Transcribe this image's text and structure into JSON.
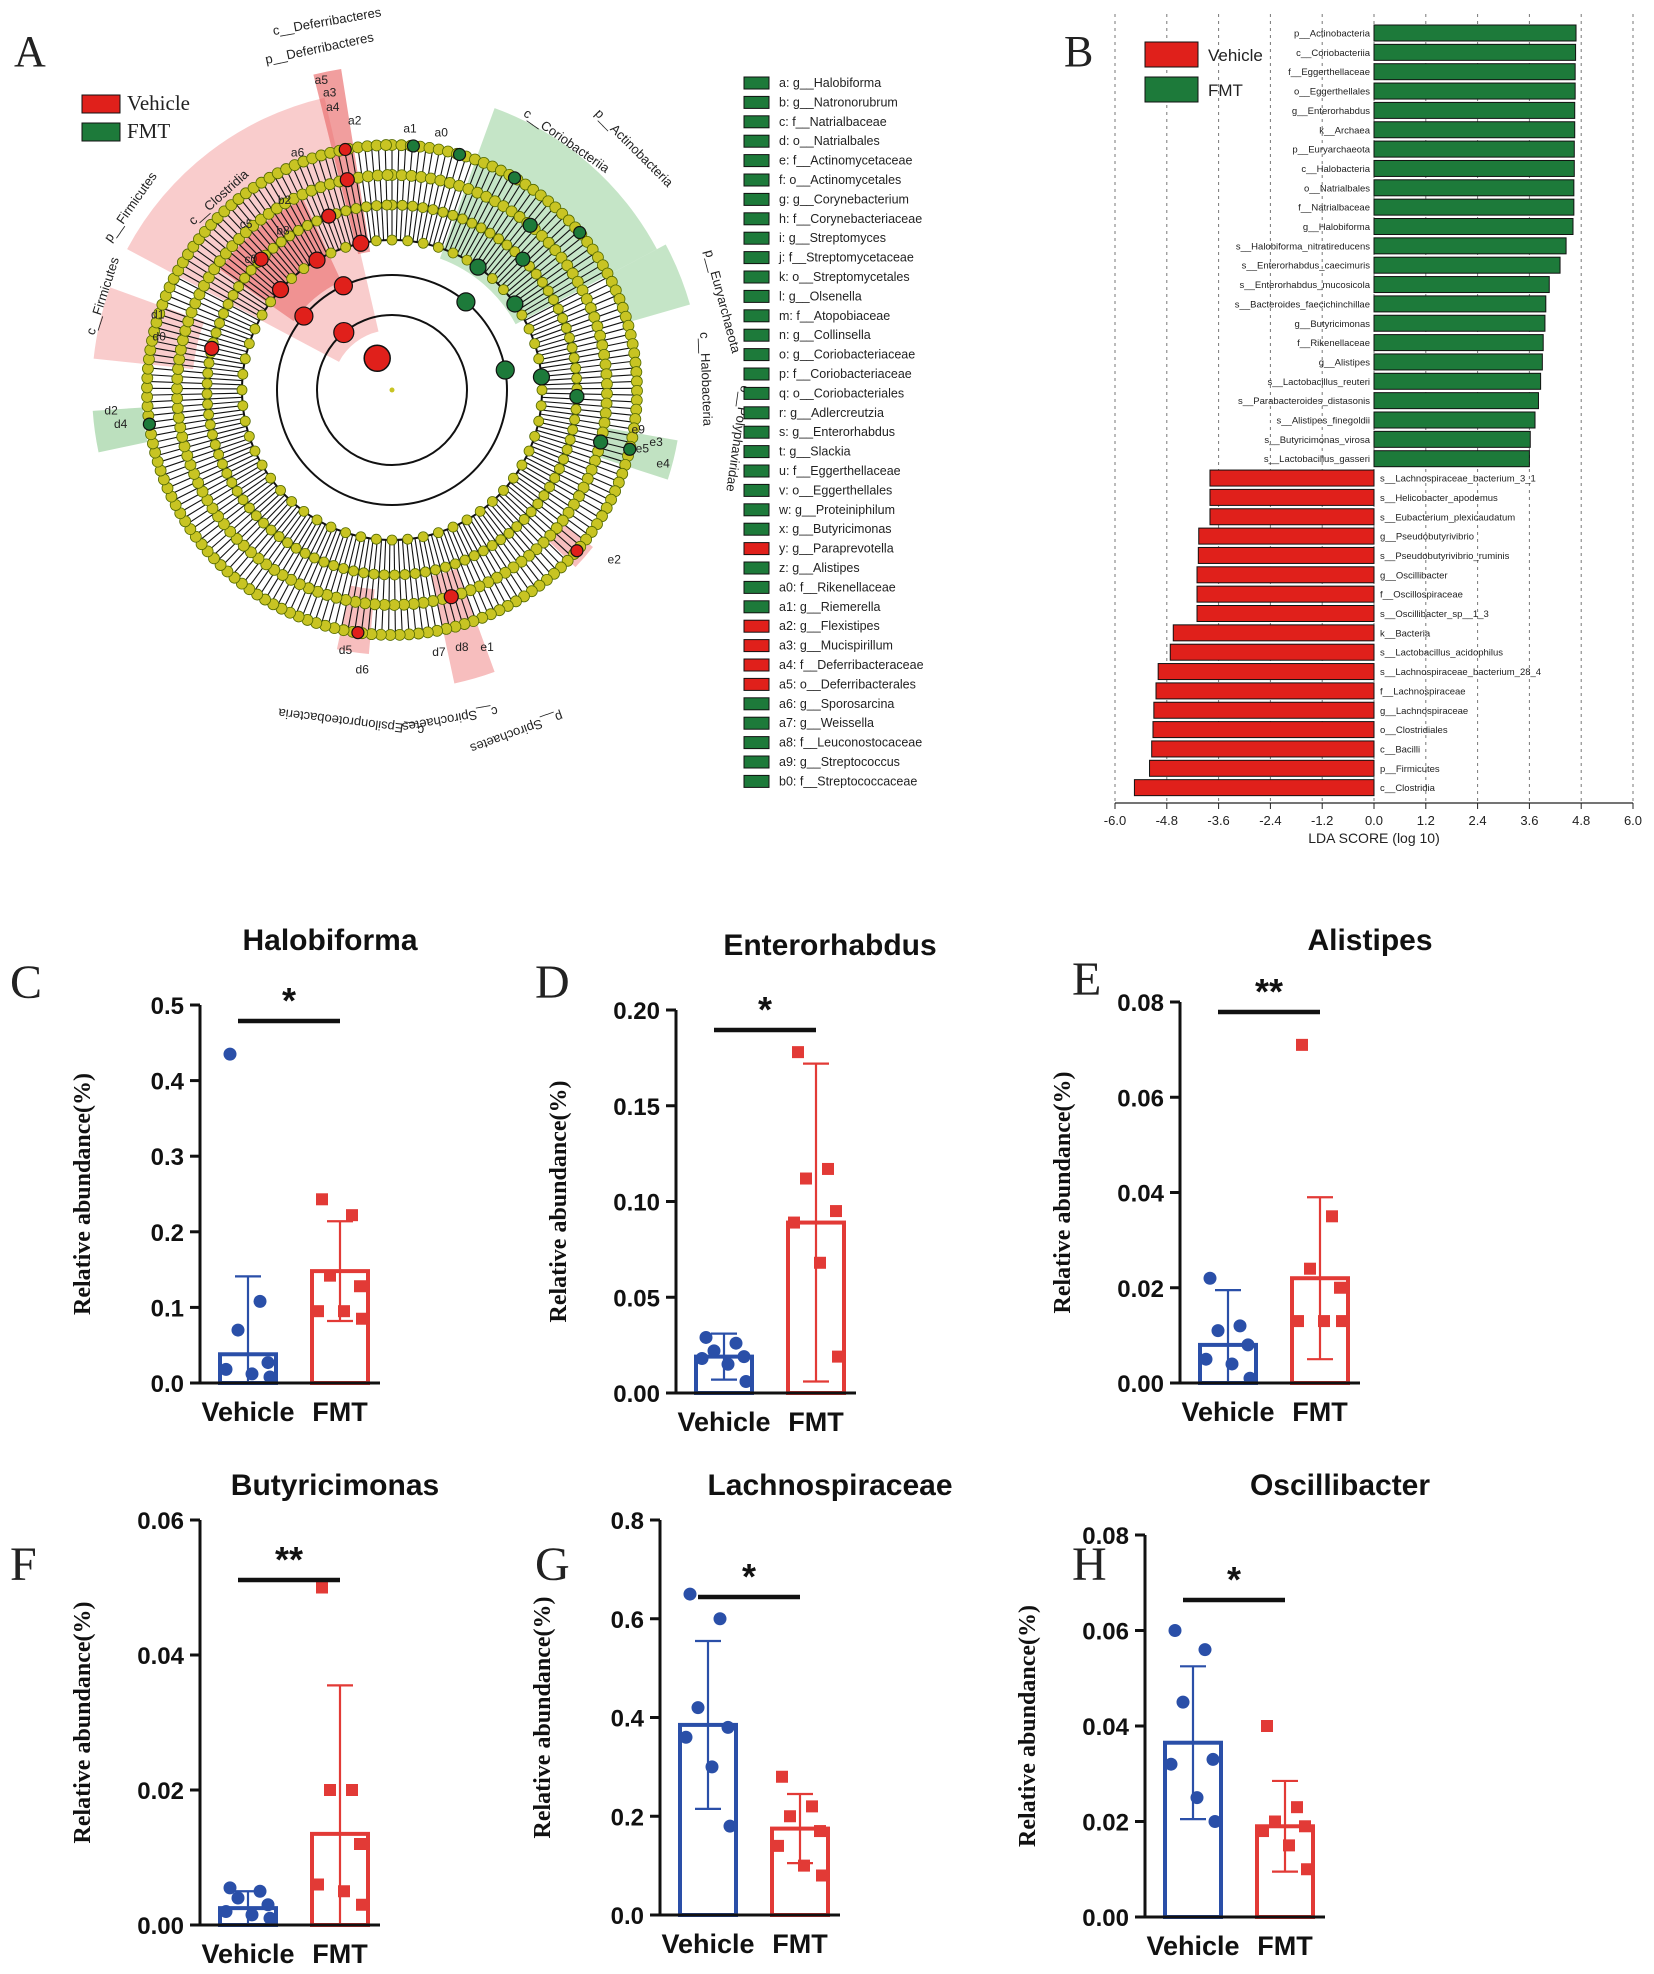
{
  "colors": {
    "vehicle_red": "#e0201b",
    "fmt_green": "#1d7a3a",
    "bar_blue": "#2a4fa8",
    "bar_red": "#e23a36",
    "node_yellow": "#c8c423",
    "shade_red": "#f4a3a3",
    "shade_green": "#9fd3a2"
  },
  "chart_data": [
    {
      "id": "A",
      "type": "cladogram",
      "panel_label": "A",
      "legend": [
        {
          "name": "Vehicle",
          "color": "#e0201b"
        },
        {
          "name": "FMT",
          "color": "#1d7a3a"
        }
      ],
      "clade_labels": [
        "p__Deferribacteres",
        "c__Deferribacteres",
        "p__Firmicutes",
        "c__Clostridia",
        "c__Coriobacteriia",
        "p__Actinobacteria",
        "p__Euryarchaeota",
        "c__Halobacteria",
        "o__Polyphaviridae",
        "c__Epsilonproteobacteria",
        "c__Spirochaetes",
        "p__Spirochaetes",
        "c__Firmicutes"
      ],
      "node_codes": [
        "a0",
        "a1",
        "a2",
        "a3",
        "a4",
        "a5",
        "a6",
        "b2",
        "c5",
        "c0",
        "b8",
        "d0",
        "d1",
        "d2",
        "d4",
        "d5",
        "d6",
        "d7",
        "d8",
        "e1",
        "e2",
        "e3",
        "e4",
        "e5",
        "e9"
      ],
      "key": [
        {
          "code": "a",
          "label": "g__Halobiforma",
          "group": "FMT"
        },
        {
          "code": "b",
          "label": "g__Natronorubrum",
          "group": "FMT"
        },
        {
          "code": "c",
          "label": "f__Natrialbaceae",
          "group": "FMT"
        },
        {
          "code": "d",
          "label": "o__Natrialbales",
          "group": "FMT"
        },
        {
          "code": "e",
          "label": "f__Actinomycetaceae",
          "group": "FMT"
        },
        {
          "code": "f",
          "label": "o__Actinomycetales",
          "group": "FMT"
        },
        {
          "code": "g",
          "label": "g__Corynebacterium",
          "group": "FMT"
        },
        {
          "code": "h",
          "label": "f__Corynebacteriaceae",
          "group": "FMT"
        },
        {
          "code": "i",
          "label": "g__Streptomyces",
          "group": "FMT"
        },
        {
          "code": "j",
          "label": "f__Streptomycetaceae",
          "group": "FMT"
        },
        {
          "code": "k",
          "label": "o__Streptomycetales",
          "group": "FMT"
        },
        {
          "code": "l",
          "label": "g__Olsenella",
          "group": "FMT"
        },
        {
          "code": "m",
          "label": "f__Atopobiaceae",
          "group": "FMT"
        },
        {
          "code": "n",
          "label": "g__Collinsella",
          "group": "FMT"
        },
        {
          "code": "o",
          "label": "g__Coriobacteriaceae",
          "group": "FMT"
        },
        {
          "code": "p",
          "label": "f__Coriobacteriaceae",
          "group": "FMT"
        },
        {
          "code": "q",
          "label": "o__Coriobacteriales",
          "group": "FMT"
        },
        {
          "code": "r",
          "label": "g__Adlercreutzia",
          "group": "FMT"
        },
        {
          "code": "s",
          "label": "g__Enterorhabdus",
          "group": "FMT"
        },
        {
          "code": "t",
          "label": "g__Slackia",
          "group": "FMT"
        },
        {
          "code": "u",
          "label": "f__Eggerthellaceae",
          "group": "FMT"
        },
        {
          "code": "v",
          "label": "o__Eggerthellales",
          "group": "FMT"
        },
        {
          "code": "w",
          "label": "g__Proteiniphilum",
          "group": "FMT"
        },
        {
          "code": "x",
          "label": "g__Butyricimonas",
          "group": "FMT"
        },
        {
          "code": "y",
          "label": "g__Paraprevotella",
          "group": "Vehicle"
        },
        {
          "code": "z",
          "label": "g__Alistipes",
          "group": "FMT"
        },
        {
          "code": "a0",
          "label": "f__Rikenellaceae",
          "group": "FMT"
        },
        {
          "code": "a1",
          "label": "g__Riemerella",
          "group": "FMT"
        },
        {
          "code": "a2",
          "label": "g__Flexistipes",
          "group": "Vehicle"
        },
        {
          "code": "a3",
          "label": "g__Mucispirillum",
          "group": "Vehicle"
        },
        {
          "code": "a4",
          "label": "f__Deferribacteraceae",
          "group": "Vehicle"
        },
        {
          "code": "a5",
          "label": "o__Deferribacterales",
          "group": "Vehicle"
        },
        {
          "code": "a6",
          "label": "g__Sporosarcina",
          "group": "FMT"
        },
        {
          "code": "a7",
          "label": "g__Weissella",
          "group": "FMT"
        },
        {
          "code": "a8",
          "label": "f__Leuconostocaceae",
          "group": "FMT"
        },
        {
          "code": "a9",
          "label": "g__Streptococcus",
          "group": "FMT"
        },
        {
          "code": "b0",
          "label": "f__Streptococcaceae",
          "group": "FMT"
        }
      ]
    },
    {
      "id": "B",
      "type": "bar",
      "orientation": "horizontal",
      "panel_label": "B",
      "xlabel": "LDA SCORE (log 10)",
      "xlim": [
        -6.0,
        6.0
      ],
      "xticks": [
        "-6.0",
        "-4.8",
        "-3.6",
        "-2.4",
        "-1.2",
        "0.0",
        "1.2",
        "2.4",
        "3.6",
        "4.8",
        "6.0"
      ],
      "legend": [
        {
          "name": "Vehicle",
          "color": "#e0201b"
        },
        {
          "name": "FMT",
          "color": "#1d7a3a"
        }
      ],
      "categories": [
        "p__Actinobacteria",
        "c__Coriobacteriia",
        "f__Eggerthellaceae",
        "o__Eggerthellales",
        "g__Enterorhabdus",
        "k__Archaea",
        "p__Euryarchaeota",
        "c__Halobacteria",
        "o__Natrialbales",
        "f__Natrialbaceae",
        "g__Halobiforma",
        "s__Halobiforma_nitratireducens",
        "s__Enterorhabdus_caecimuris",
        "s__Enterorhabdus_mucosicola",
        "s__Bacteroides_faecichinchillae",
        "g__Butyricimonas",
        "f__Rikenellaceae",
        "g__Alistipes",
        "s__Lactobacillus_reuteri",
        "s__Parabacteroides_distasonis",
        "s__Alistipes_finegoldii",
        "s__Butyricimonas_virosa",
        "s__Lactobacillus_gasseri",
        "s__Lachnospiraceae_bacterium_3_1",
        "s__Helicobacter_apodemus",
        "s__Eubacterium_plexicaudatum",
        "g__Pseudobutyrivibrio",
        "s__Pseudobutyrivibrio_ruminis",
        "g__Oscillibacter",
        "f__Oscillospiraceae",
        "s__Oscillibacter_sp__1_3",
        "k__Bacteria",
        "s__Lactobacillus_acidophilus",
        "s__Lachnospiraceae_bacterium_28_4",
        "f__Lachnospiraceae",
        "g__Lachnospiraceae",
        "o__Clostridiales",
        "c__Bacilli",
        "p__Firmicutes",
        "c__Clostridia"
      ],
      "values": [
        4.68,
        4.67,
        4.66,
        4.66,
        4.65,
        4.65,
        4.64,
        4.64,
        4.63,
        4.63,
        4.61,
        4.45,
        4.31,
        4.06,
        3.98,
        3.96,
        3.92,
        3.9,
        3.86,
        3.81,
        3.73,
        3.62,
        3.6,
        -3.8,
        -3.8,
        -3.8,
        -4.06,
        -4.07,
        -4.1,
        -4.1,
        -4.1,
        -4.65,
        -4.72,
        -5.0,
        -5.05,
        -5.1,
        -5.12,
        -5.15,
        -5.2,
        -5.55
      ]
    },
    {
      "id": "C",
      "type": "bar",
      "panel_label": "C",
      "title": "Halobiforma",
      "ylabel": "Relative abundance(%)",
      "categories": [
        "Vehicle",
        "FMT"
      ],
      "ylim": [
        0,
        0.5
      ],
      "yticks": [
        "0.0",
        "0.1",
        "0.2",
        "0.3",
        "0.4",
        "0.5"
      ],
      "series": [
        {
          "name": "Vehicle",
          "mean": 0.038,
          "sd": 0.103,
          "points": [
            0.435,
            0.108,
            0.07,
            0.027,
            0.018,
            0.012,
            0.008
          ]
        },
        {
          "name": "FMT",
          "mean": 0.148,
          "sd": 0.066,
          "points": [
            0.243,
            0.222,
            0.142,
            0.128,
            0.095,
            0.095,
            0.085
          ]
        }
      ],
      "significance": "*"
    },
    {
      "id": "D",
      "type": "bar",
      "panel_label": "D",
      "title": "Enterorhabdus",
      "ylabel": "Relative abundance(%)",
      "categories": [
        "Vehicle",
        "FMT"
      ],
      "ylim": [
        0,
        0.2
      ],
      "yticks": [
        "0.00",
        "0.05",
        "0.10",
        "0.15",
        "0.20"
      ],
      "series": [
        {
          "name": "Vehicle",
          "mean": 0.019,
          "sd": 0.012,
          "points": [
            0.029,
            0.026,
            0.022,
            0.019,
            0.018,
            0.015,
            0.006
          ]
        },
        {
          "name": "FMT",
          "mean": 0.089,
          "sd": 0.083,
          "points": [
            0.178,
            0.117,
            0.112,
            0.095,
            0.089,
            0.068,
            0.019
          ]
        }
      ],
      "significance": "*"
    },
    {
      "id": "E",
      "type": "bar",
      "panel_label": "E",
      "title": "Alistipes",
      "ylabel": "Relative abundance(%)",
      "categories": [
        "Vehicle",
        "FMT"
      ],
      "ylim": [
        0,
        0.08
      ],
      "yticks": [
        "0.00",
        "0.02",
        "0.04",
        "0.06",
        "0.08"
      ],
      "series": [
        {
          "name": "Vehicle",
          "mean": 0.008,
          "sd": 0.0115,
          "points": [
            0.022,
            0.012,
            0.011,
            0.008,
            0.005,
            0.004,
            0.001
          ]
        },
        {
          "name": "FMT",
          "mean": 0.022,
          "sd": 0.017,
          "points": [
            0.071,
            0.035,
            0.024,
            0.02,
            0.013,
            0.013,
            0.013
          ]
        }
      ],
      "significance": "**"
    },
    {
      "id": "F",
      "type": "bar",
      "panel_label": "F",
      "title": "Butyricimonas",
      "ylabel": "Relative abundance(%)",
      "categories": [
        "Vehicle",
        "FMT"
      ],
      "ylim": [
        0,
        0.06
      ],
      "yticks": [
        "0.00",
        "0.02",
        "0.04",
        "0.06"
      ],
      "series": [
        {
          "name": "Vehicle",
          "mean": 0.0025,
          "sd": 0.0025,
          "points": [
            0.0055,
            0.005,
            0.004,
            0.003,
            0.002,
            0.0015,
            0.001
          ]
        },
        {
          "name": "FMT",
          "mean": 0.0135,
          "sd": 0.022,
          "points": [
            0.05,
            0.02,
            0.02,
            0.012,
            0.006,
            0.005,
            0.003
          ]
        }
      ],
      "significance": "**"
    },
    {
      "id": "G",
      "type": "bar",
      "panel_label": "G",
      "title": "Lachnospiraceae",
      "ylabel": "Relative abundance(%)",
      "categories": [
        "Vehicle",
        "FMT"
      ],
      "ylim": [
        0,
        0.8
      ],
      "yticks": [
        "0.0",
        "0.2",
        "0.4",
        "0.6",
        "0.8"
      ],
      "series": [
        {
          "name": "Vehicle",
          "mean": 0.385,
          "sd": 0.17,
          "points": [
            0.65,
            0.6,
            0.42,
            0.38,
            0.36,
            0.3,
            0.18
          ]
        },
        {
          "name": "FMT",
          "mean": 0.175,
          "sd": 0.07,
          "points": [
            0.28,
            0.22,
            0.2,
            0.17,
            0.14,
            0.1,
            0.08
          ]
        }
      ],
      "significance": "*"
    },
    {
      "id": "H",
      "type": "bar",
      "panel_label": "H",
      "title": "Oscillibacter",
      "ylabel": "Relative abundance(%)",
      "categories": [
        "Vehicle",
        "FMT"
      ],
      "ylim": [
        0,
        0.08
      ],
      "yticks": [
        "0.00",
        "0.02",
        "0.04",
        "0.06",
        "0.08"
      ],
      "series": [
        {
          "name": "Vehicle",
          "mean": 0.0365,
          "sd": 0.016,
          "points": [
            0.06,
            0.056,
            0.045,
            0.033,
            0.032,
            0.025,
            0.02
          ]
        },
        {
          "name": "FMT",
          "mean": 0.019,
          "sd": 0.0095,
          "points": [
            0.04,
            0.023,
            0.02,
            0.019,
            0.018,
            0.015,
            0.01
          ]
        }
      ],
      "significance": "*"
    }
  ]
}
